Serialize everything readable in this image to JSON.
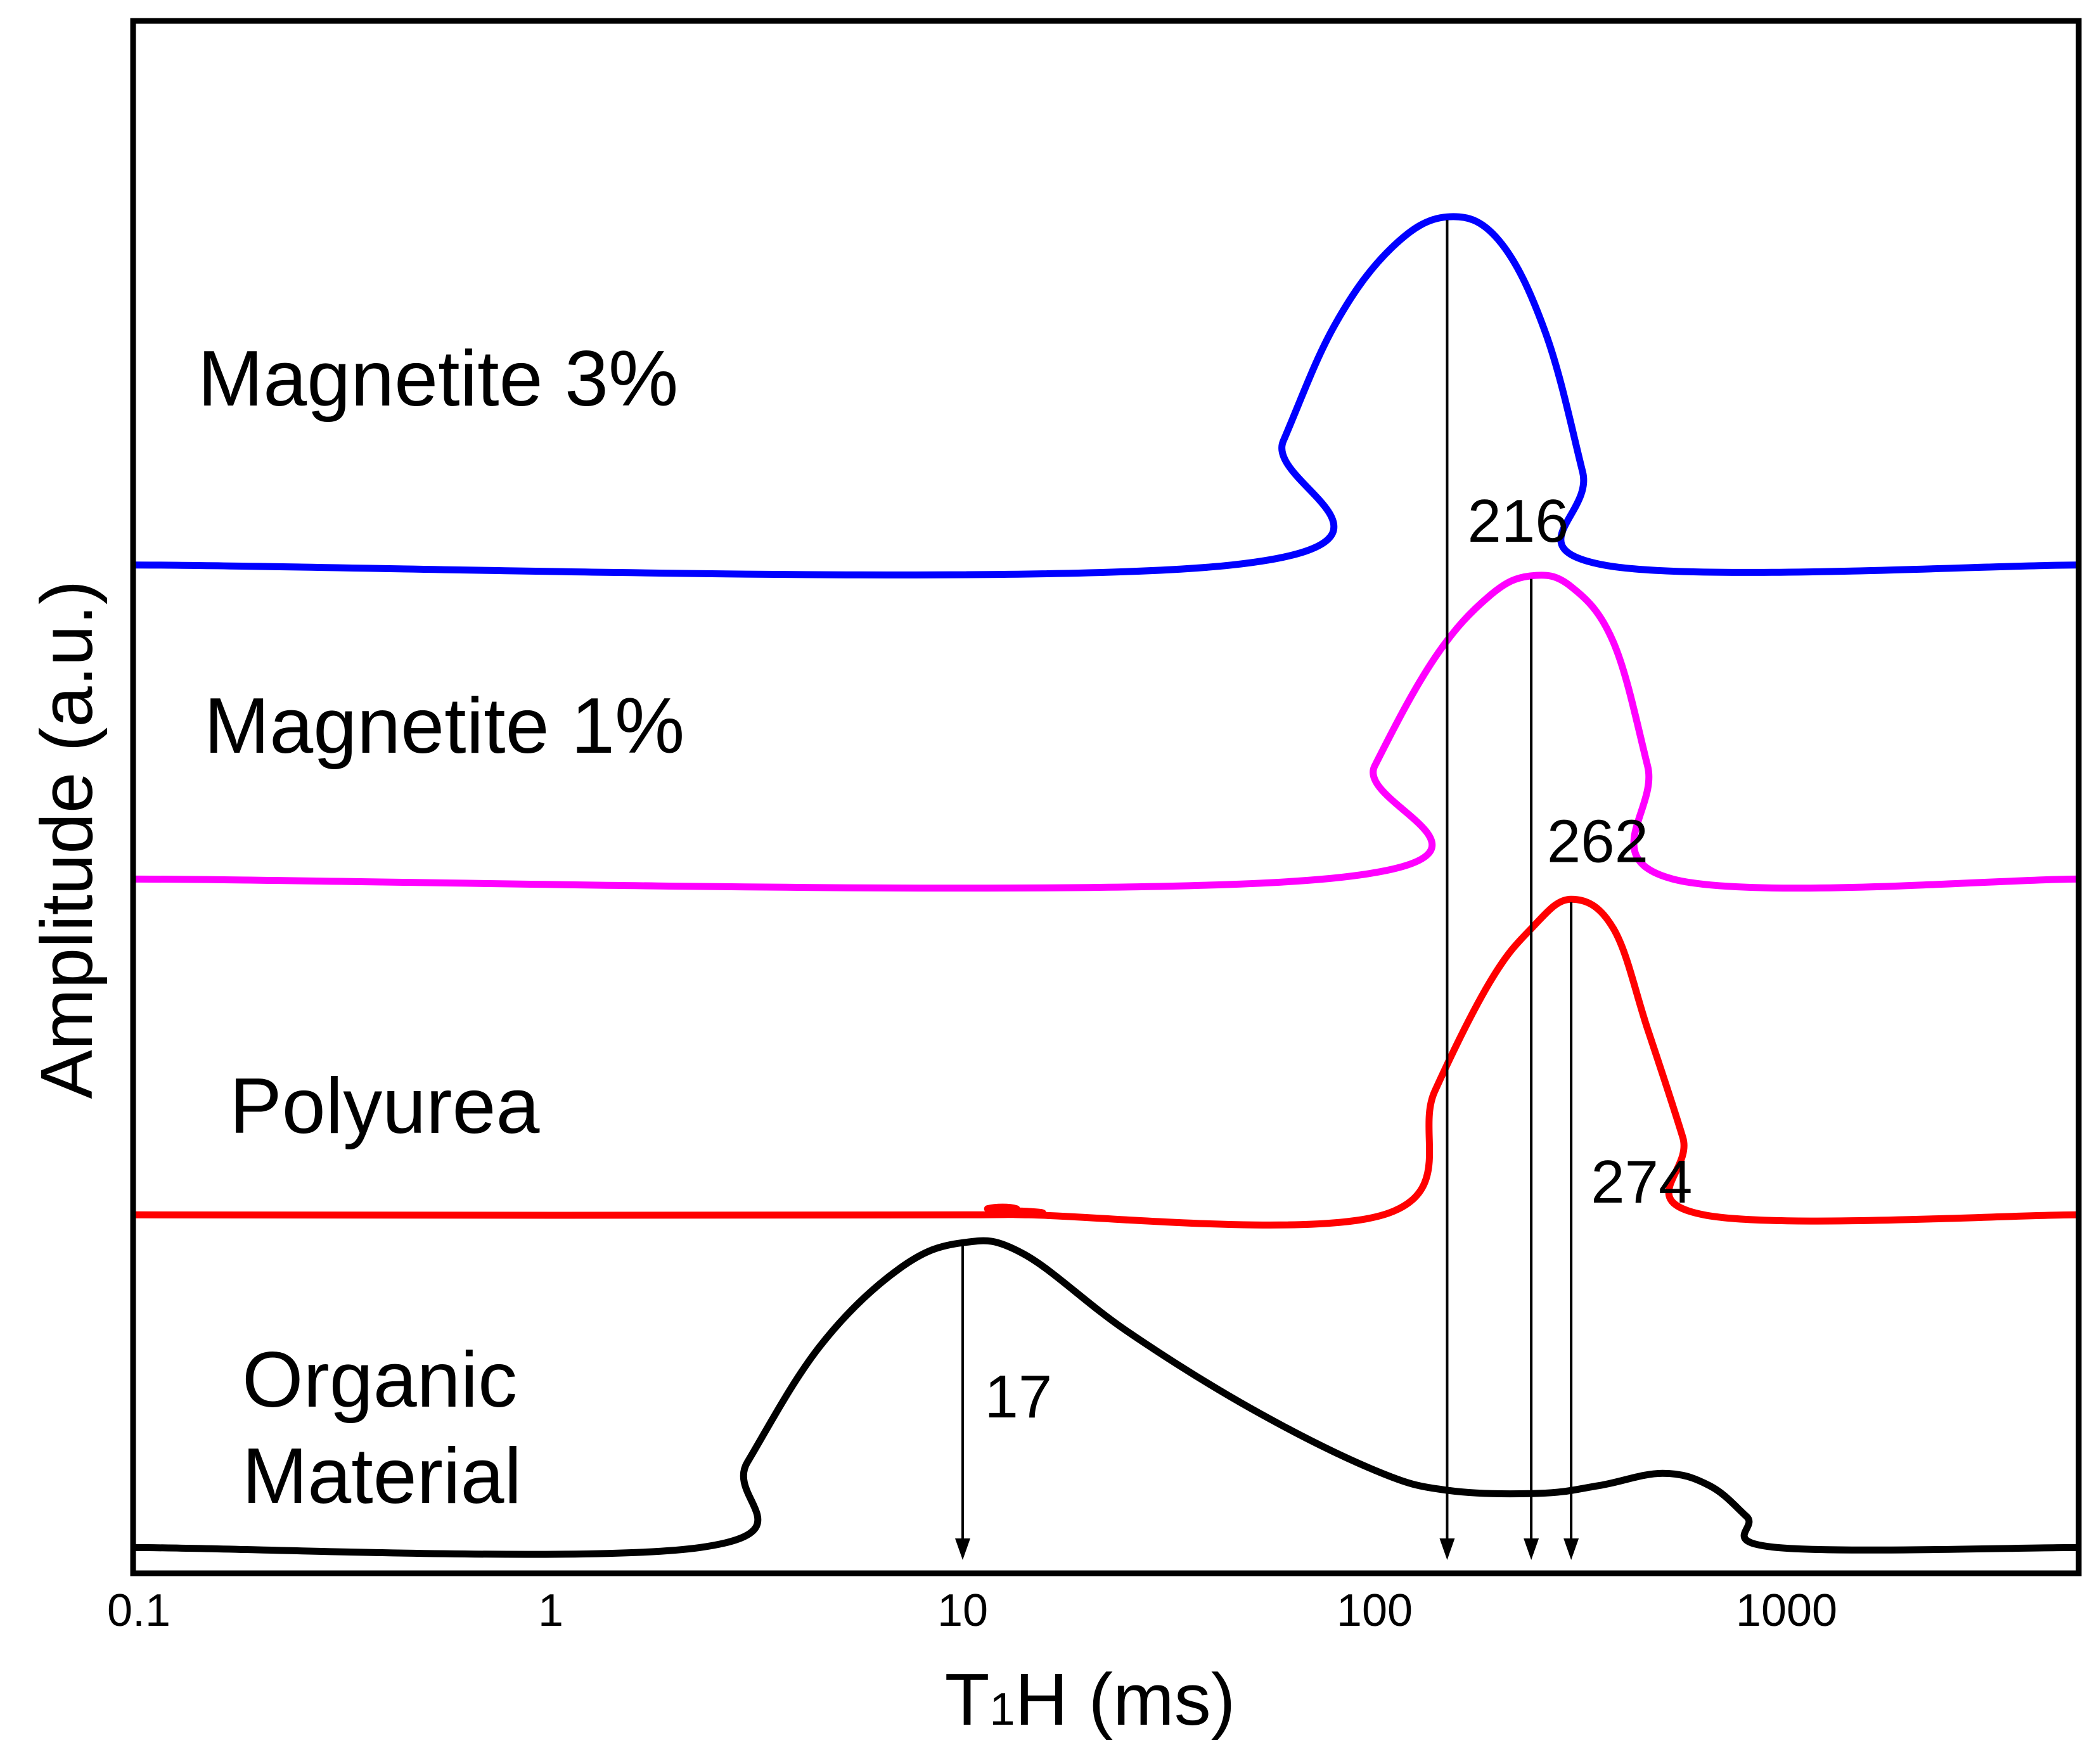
{
  "chart_data": {
    "type": "line",
    "title": "",
    "xlabel": {
      "main": "T",
      "subscript": "1",
      "rest": "H (ms)"
    },
    "ylabel": "Amplitude (a.u.)",
    "xscale": "log",
    "xlim": [
      0.1,
      5000
    ],
    "xticks": [
      {
        "value": 0.1,
        "label": "0.1"
      },
      {
        "value": 1,
        "label": "1"
      },
      {
        "value": 10,
        "label": "10"
      },
      {
        "value": 100,
        "label": "100"
      },
      {
        "value": 1000,
        "label": "1000"
      }
    ],
    "ylim": [
      0,
      100
    ],
    "grid": false,
    "y_ticks_shown": false,
    "series": [
      {
        "name": "Magnetite 3%",
        "label_lines": [
          "Magnetite 3%"
        ],
        "color": "#0000ff",
        "baseline": 65,
        "points": [
          [
            0.1,
            65
          ],
          [
            45,
            65
          ],
          [
            60,
            73
          ],
          [
            80,
            80.5
          ],
          [
            110,
            85.5
          ],
          [
            150,
            87.5
          ],
          [
            200,
            86
          ],
          [
            260,
            80
          ],
          [
            320,
            71
          ],
          [
            360,
            65
          ],
          [
            5000,
            65
          ]
        ]
      },
      {
        "name": "Magnetite 1%",
        "label_lines": [
          "Magnetite 1%"
        ],
        "color": "#ff00ff",
        "baseline": 44.7,
        "points": [
          [
            0.1,
            44.7
          ],
          [
            75,
            44.7
          ],
          [
            100,
            52
          ],
          [
            140,
            59
          ],
          [
            190,
            63
          ],
          [
            240,
            64.3
          ],
          [
            300,
            63.6
          ],
          [
            380,
            60
          ],
          [
            460,
            52
          ],
          [
            530,
            44.7
          ],
          [
            5000,
            44.7
          ]
        ]
      },
      {
        "name": "Polyurea",
        "label_lines": [
          "Polyurea"
        ],
        "color": "#ff0000",
        "baseline": 23,
        "points": [
          [
            0.1,
            23
          ],
          [
            10.5,
            23
          ],
          [
            11.5,
            23.4
          ],
          [
            12.5,
            23.5
          ],
          [
            13.5,
            23.4
          ],
          [
            14.5,
            23
          ],
          [
            105,
            23
          ],
          [
            140,
            31
          ],
          [
            190,
            38
          ],
          [
            240,
            41.5
          ],
          [
            300,
            43.4
          ],
          [
            380,
            41.5
          ],
          [
            460,
            35
          ],
          [
            560,
            28
          ],
          [
            630,
            23
          ],
          [
            5000,
            23
          ]
        ]
      },
      {
        "name": "Organic Material",
        "label_lines": [
          "Organic",
          "Material"
        ],
        "color": "#000000",
        "baseline": 1.5,
        "points": [
          [
            0.1,
            1.5
          ],
          [
            2.3,
            1.5
          ],
          [
            3,
            7
          ],
          [
            4.5,
            14.5
          ],
          [
            7,
            19.5
          ],
          [
            10,
            21.2
          ],
          [
            14,
            20.5
          ],
          [
            25,
            15.5
          ],
          [
            50,
            10.5
          ],
          [
            100,
            6.5
          ],
          [
            150,
            5.2
          ],
          [
            250,
            5
          ],
          [
            350,
            5.5
          ],
          [
            500,
            6.3
          ],
          [
            650,
            5.5
          ],
          [
            800,
            3.5
          ],
          [
            950,
            1.5
          ],
          [
            5000,
            1.5
          ]
        ]
      }
    ],
    "annotations": [
      {
        "text": "216",
        "x": 150,
        "arrow_top": 87.3,
        "label_x": 168,
        "label_y": 66.5
      },
      {
        "text": "262",
        "x": 240,
        "arrow_top": 64.1,
        "label_x": 262,
        "label_y": 45.8
      },
      {
        "text": "274",
        "x": 300,
        "arrow_top": 43.2,
        "label_x": 335,
        "label_y": 23.8
      },
      {
        "text": "17",
        "x": 10,
        "arrow_top": 21.1,
        "label_x": 11.3,
        "label_y": 9.9
      }
    ]
  }
}
